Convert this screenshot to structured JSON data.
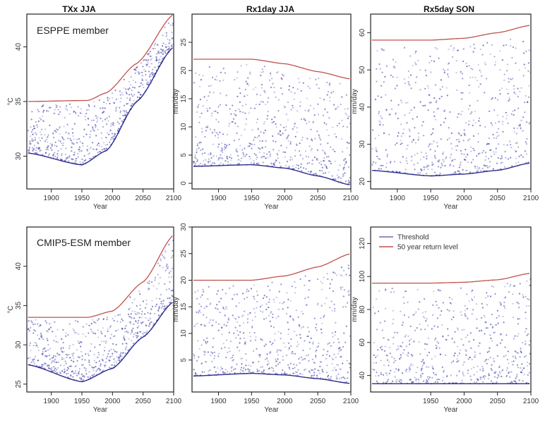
{
  "figure": {
    "columns": [
      "TXx JJA",
      "Rx1day JJA",
      "Rx5day SON"
    ],
    "row_labels": [
      "ESPPE member",
      "CMIP5-ESM member"
    ],
    "legend": [
      {
        "label": "Threshold",
        "color": "#6b6bb5"
      },
      {
        "label": "50 year return level",
        "color": "#c0504d"
      }
    ]
  },
  "chart_data": [
    {
      "type": "scatter",
      "column_title": "TXx JJA",
      "panel_label": "ESPPE member",
      "xlabel": "Year",
      "ylabel": "°C",
      "xlim": [
        1860,
        2100
      ],
      "ylim": [
        27,
        43
      ],
      "xticks": [
        1900,
        1950,
        2000,
        2050,
        2100
      ],
      "yticks": [
        30,
        35,
        40
      ],
      "return_level": {
        "x": [
          1860,
          1960,
          1990,
          2040,
          2100
        ],
        "y": [
          35,
          35.1,
          35.8,
          38.5,
          43
        ]
      },
      "threshold": {
        "x": [
          1860,
          1950,
          1990,
          2040,
          2100
        ],
        "y": [
          30.3,
          29.2,
          30.5,
          35,
          40
        ]
      },
      "color": "#3f3fa8"
    },
    {
      "type": "scatter",
      "column_title": "Rx1day JJA",
      "panel_label": "",
      "xlabel": "Year",
      "ylabel": "mm/day",
      "xlim": [
        1860,
        2100
      ],
      "ylim": [
        -1,
        30
      ],
      "xticks": [
        1900,
        1950,
        2000,
        2050,
        2100
      ],
      "yticks": [
        0,
        5,
        10,
        15,
        20,
        25
      ],
      "return_level": {
        "x": [
          1860,
          1950,
          2000,
          2050,
          2100
        ],
        "y": [
          22,
          22,
          21.2,
          19.8,
          18.5
        ]
      },
      "threshold": {
        "x": [
          1860,
          1950,
          2000,
          2050,
          2100
        ],
        "y": [
          3,
          3.3,
          2.7,
          1.3,
          -0.3
        ]
      },
      "color": "#3f3fa8"
    },
    {
      "type": "scatter",
      "column_title": "Rx5day SON",
      "panel_label": "",
      "xlabel": "Year",
      "ylabel": "mm/day",
      "xlim": [
        1860,
        2100
      ],
      "ylim": [
        18,
        65
      ],
      "xticks": [
        1900,
        1950,
        2000,
        2050,
        2100
      ],
      "yticks": [
        20,
        30,
        40,
        50,
        60
      ],
      "return_level": {
        "x": [
          1860,
          1950,
          2000,
          2050,
          2100
        ],
        "y": [
          58,
          58,
          58.5,
          60,
          62
        ]
      },
      "threshold": {
        "x": [
          1860,
          1950,
          2000,
          2050,
          2100
        ],
        "y": [
          23,
          21.5,
          22,
          23,
          25
        ]
      },
      "color": "#3f3fa8"
    },
    {
      "type": "scatter",
      "column_title": "TXx JJA",
      "panel_label": "CMIP5-ESM member",
      "xlabel": "Year",
      "ylabel": "°C",
      "xlim": [
        1860,
        2100
      ],
      "ylim": [
        24,
        45
      ],
      "xticks": [
        1900,
        1950,
        2000,
        2050,
        2100
      ],
      "yticks": [
        25,
        30,
        35,
        40
      ],
      "return_level": {
        "x": [
          1860,
          1960,
          2000,
          2050,
          2100
        ],
        "y": [
          33.5,
          33.5,
          34.3,
          38,
          44
        ]
      },
      "threshold": {
        "x": [
          1860,
          1950,
          2000,
          2050,
          2100
        ],
        "y": [
          27.5,
          25.3,
          27,
          31,
          35.5
        ]
      },
      "color": "#3f3fa8"
    },
    {
      "type": "scatter",
      "column_title": "Rx1day JJA",
      "panel_label": "",
      "xlabel": "Year",
      "ylabel": "mm/day",
      "xlim": [
        1860,
        2100
      ],
      "ylim": [
        -1,
        30
      ],
      "xticks": [
        1900,
        1950,
        2000,
        2050,
        2100
      ],
      "yticks": [
        5,
        10,
        15,
        20,
        25,
        30
      ],
      "return_level": {
        "x": [
          1860,
          1950,
          2000,
          2050,
          2100
        ],
        "y": [
          20,
          20,
          20.8,
          22.5,
          25
        ]
      },
      "threshold": {
        "x": [
          1860,
          1950,
          2000,
          2050,
          2100
        ],
        "y": [
          2,
          2.5,
          2.2,
          1.5,
          0.6
        ]
      },
      "color": "#3f3fa8"
    },
    {
      "type": "scatter",
      "column_title": "Rx5day SON",
      "panel_label": "",
      "xlabel": "Year",
      "ylabel": "mm/day",
      "xlim": [
        1860,
        2100
      ],
      "ylim": [
        30,
        130
      ],
      "xticks": [
        1950,
        2000,
        2050,
        2100
      ],
      "yticks": [
        40,
        60,
        80,
        100,
        120
      ],
      "return_level": {
        "x": [
          1860,
          1950,
          2000,
          2050,
          2100
        ],
        "y": [
          96,
          96,
          96.5,
          98,
          102
        ]
      },
      "threshold": {
        "x": [
          1860,
          1950,
          2000,
          2050,
          2100
        ],
        "y": [
          35,
          35,
          35,
          35,
          35
        ]
      },
      "color": "#3f3fa8"
    }
  ]
}
